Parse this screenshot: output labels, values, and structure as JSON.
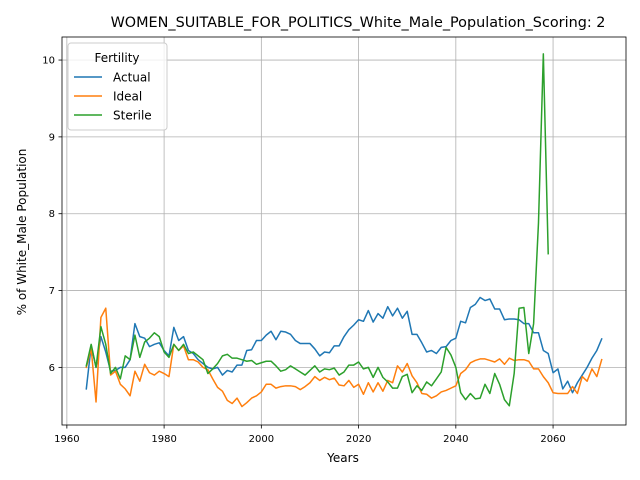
{
  "chart_data": {
    "type": "line",
    "title": "WOMEN_SUITABLE_FOR_POLITICS_White_Male_Population_Scoring: 2",
    "xlabel": "Years",
    "ylabel": "% of White_Male Population",
    "xlim": [
      1959,
      2075
    ],
    "ylim": [
      5.25,
      10.3
    ],
    "x_ticks": [
      1960,
      1980,
      2000,
      2020,
      2040,
      2060
    ],
    "y_ticks": [
      6,
      7,
      8,
      9,
      10
    ],
    "grid": true,
    "legend": {
      "title": "Fertility",
      "placement": "top-left"
    },
    "series": [
      {
        "name": "Actual",
        "color": "#1f77b4",
        "points": [
          [
            1964,
            5.72
          ],
          [
            1965,
            6.28
          ],
          [
            1966,
            6.0
          ],
          [
            1967,
            6.4
          ],
          [
            1968,
            6.2
          ],
          [
            1969,
            5.95
          ],
          [
            1970,
            5.96
          ],
          [
            1971,
            6.0
          ],
          [
            1972,
            6.0
          ],
          [
            1973,
            6.1
          ],
          [
            1974,
            6.57
          ],
          [
            1975,
            6.4
          ],
          [
            1976,
            6.38
          ],
          [
            1977,
            6.27
          ],
          [
            1978,
            6.3
          ],
          [
            1979,
            6.32
          ],
          [
            1980,
            6.22
          ],
          [
            1981,
            6.15
          ],
          [
            1982,
            6.52
          ],
          [
            1983,
            6.35
          ],
          [
            1984,
            6.4
          ],
          [
            1985,
            6.22
          ],
          [
            1986,
            6.18
          ],
          [
            1987,
            6.1
          ],
          [
            1988,
            6.05
          ],
          [
            1989,
            6.0
          ],
          [
            1990,
            5.98
          ],
          [
            1991,
            6.0
          ],
          [
            1992,
            5.9
          ],
          [
            1993,
            5.96
          ],
          [
            1994,
            5.94
          ],
          [
            1995,
            6.03
          ],
          [
            1996,
            6.03
          ],
          [
            1997,
            6.22
          ],
          [
            1998,
            6.23
          ],
          [
            1999,
            6.35
          ],
          [
            2000,
            6.35
          ],
          [
            2001,
            6.42
          ],
          [
            2002,
            6.47
          ],
          [
            2003,
            6.36
          ],
          [
            2004,
            6.47
          ],
          [
            2005,
            6.46
          ],
          [
            2006,
            6.43
          ],
          [
            2007,
            6.35
          ],
          [
            2008,
            6.31
          ],
          [
            2009,
            6.31
          ],
          [
            2010,
            6.31
          ],
          [
            2011,
            6.24
          ],
          [
            2012,
            6.15
          ],
          [
            2013,
            6.2
          ],
          [
            2014,
            6.19
          ],
          [
            2015,
            6.28
          ],
          [
            2016,
            6.28
          ],
          [
            2017,
            6.4
          ],
          [
            2018,
            6.49
          ],
          [
            2019,
            6.55
          ],
          [
            2020,
            6.62
          ],
          [
            2021,
            6.6
          ],
          [
            2022,
            6.74
          ],
          [
            2023,
            6.59
          ],
          [
            2024,
            6.7
          ],
          [
            2025,
            6.64
          ],
          [
            2026,
            6.79
          ],
          [
            2027,
            6.67
          ],
          [
            2028,
            6.77
          ],
          [
            2029,
            6.64
          ],
          [
            2030,
            6.73
          ],
          [
            2031,
            6.43
          ],
          [
            2032,
            6.43
          ],
          [
            2033,
            6.32
          ],
          [
            2034,
            6.2
          ],
          [
            2035,
            6.22
          ],
          [
            2036,
            6.18
          ],
          [
            2037,
            6.26
          ],
          [
            2038,
            6.27
          ],
          [
            2039,
            6.35
          ],
          [
            2040,
            6.38
          ],
          [
            2041,
            6.6
          ],
          [
            2042,
            6.58
          ],
          [
            2043,
            6.78
          ],
          [
            2044,
            6.82
          ],
          [
            2045,
            6.91
          ],
          [
            2046,
            6.87
          ],
          [
            2047,
            6.89
          ],
          [
            2048,
            6.76
          ],
          [
            2049,
            6.76
          ],
          [
            2050,
            6.62
          ],
          [
            2051,
            6.63
          ],
          [
            2052,
            6.63
          ],
          [
            2053,
            6.62
          ],
          [
            2054,
            6.57
          ],
          [
            2055,
            6.57
          ],
          [
            2056,
            6.45
          ],
          [
            2057,
            6.45
          ],
          [
            2058,
            6.22
          ],
          [
            2059,
            6.18
          ],
          [
            2060,
            5.93
          ],
          [
            2061,
            5.98
          ],
          [
            2062,
            5.72
          ],
          [
            2063,
            5.82
          ],
          [
            2064,
            5.67
          ],
          [
            2065,
            5.8
          ],
          [
            2066,
            5.9
          ],
          [
            2067,
            6.0
          ],
          [
            2068,
            6.12
          ],
          [
            2069,
            6.22
          ],
          [
            2070,
            6.37
          ]
        ]
      },
      {
        "name": "Ideal",
        "color": "#ff7f0e",
        "points": [
          [
            1964,
            6.0
          ],
          [
            1965,
            6.25
          ],
          [
            1966,
            5.55
          ],
          [
            1967,
            6.65
          ],
          [
            1968,
            6.77
          ],
          [
            1969,
            5.9
          ],
          [
            1970,
            5.95
          ],
          [
            1971,
            5.78
          ],
          [
            1972,
            5.72
          ],
          [
            1973,
            5.63
          ],
          [
            1974,
            5.95
          ],
          [
            1975,
            5.82
          ],
          [
            1976,
            6.04
          ],
          [
            1977,
            5.93
          ],
          [
            1978,
            5.9
          ],
          [
            1979,
            5.95
          ],
          [
            1980,
            5.92
          ],
          [
            1981,
            5.88
          ],
          [
            1982,
            6.3
          ],
          [
            1983,
            6.22
          ],
          [
            1984,
            6.28
          ],
          [
            1985,
            6.1
          ],
          [
            1986,
            6.1
          ],
          [
            1987,
            6.07
          ],
          [
            1988,
            6.0
          ],
          [
            1989,
            5.97
          ],
          [
            1990,
            5.85
          ],
          [
            1991,
            5.74
          ],
          [
            1992,
            5.69
          ],
          [
            1993,
            5.57
          ],
          [
            1994,
            5.53
          ],
          [
            1995,
            5.6
          ],
          [
            1996,
            5.49
          ],
          [
            1997,
            5.54
          ],
          [
            1998,
            5.6
          ],
          [
            1999,
            5.63
          ],
          [
            2000,
            5.68
          ],
          [
            2001,
            5.78
          ],
          [
            2002,
            5.78
          ],
          [
            2003,
            5.73
          ],
          [
            2004,
            5.75
          ],
          [
            2005,
            5.76
          ],
          [
            2006,
            5.76
          ],
          [
            2007,
            5.75
          ],
          [
            2008,
            5.71
          ],
          [
            2009,
            5.75
          ],
          [
            2010,
            5.8
          ],
          [
            2011,
            5.88
          ],
          [
            2012,
            5.83
          ],
          [
            2013,
            5.87
          ],
          [
            2014,
            5.84
          ],
          [
            2015,
            5.86
          ],
          [
            2016,
            5.77
          ],
          [
            2017,
            5.76
          ],
          [
            2018,
            5.83
          ],
          [
            2019,
            5.74
          ],
          [
            2020,
            5.78
          ],
          [
            2021,
            5.65
          ],
          [
            2022,
            5.8
          ],
          [
            2023,
            5.68
          ],
          [
            2024,
            5.8
          ],
          [
            2025,
            5.69
          ],
          [
            2026,
            5.83
          ],
          [
            2027,
            5.8
          ],
          [
            2028,
            6.02
          ],
          [
            2029,
            5.94
          ],
          [
            2030,
            6.05
          ],
          [
            2031,
            5.89
          ],
          [
            2032,
            5.8
          ],
          [
            2033,
            5.66
          ],
          [
            2034,
            5.65
          ],
          [
            2035,
            5.6
          ],
          [
            2036,
            5.63
          ],
          [
            2037,
            5.68
          ],
          [
            2038,
            5.7
          ],
          [
            2039,
            5.73
          ],
          [
            2040,
            5.76
          ],
          [
            2041,
            5.92
          ],
          [
            2042,
            5.97
          ],
          [
            2043,
            6.06
          ],
          [
            2044,
            6.09
          ],
          [
            2045,
            6.11
          ],
          [
            2046,
            6.11
          ],
          [
            2047,
            6.09
          ],
          [
            2048,
            6.07
          ],
          [
            2049,
            6.11
          ],
          [
            2050,
            6.04
          ],
          [
            2051,
            6.12
          ],
          [
            2052,
            6.09
          ],
          [
            2053,
            6.1
          ],
          [
            2054,
            6.1
          ],
          [
            2055,
            6.08
          ],
          [
            2056,
            5.98
          ],
          [
            2057,
            5.98
          ],
          [
            2058,
            5.88
          ],
          [
            2059,
            5.8
          ],
          [
            2060,
            5.67
          ],
          [
            2061,
            5.66
          ],
          [
            2062,
            5.66
          ],
          [
            2063,
            5.66
          ],
          [
            2064,
            5.75
          ],
          [
            2065,
            5.66
          ],
          [
            2066,
            5.88
          ],
          [
            2067,
            5.82
          ],
          [
            2068,
            5.98
          ],
          [
            2069,
            5.88
          ],
          [
            2070,
            6.1
          ]
        ]
      },
      {
        "name": "Sterile",
        "color": "#2ca02c",
        "points": [
          [
            1964,
            6.02
          ],
          [
            1965,
            6.3
          ],
          [
            1966,
            6.0
          ],
          [
            1967,
            6.53
          ],
          [
            1968,
            6.3
          ],
          [
            1969,
            5.92
          ],
          [
            1970,
            6.0
          ],
          [
            1971,
            5.85
          ],
          [
            1972,
            6.15
          ],
          [
            1973,
            6.1
          ],
          [
            1974,
            6.42
          ],
          [
            1975,
            6.13
          ],
          [
            1976,
            6.33
          ],
          [
            1977,
            6.38
          ],
          [
            1978,
            6.45
          ],
          [
            1979,
            6.4
          ],
          [
            1980,
            6.2
          ],
          [
            1981,
            6.13
          ],
          [
            1982,
            6.3
          ],
          [
            1983,
            6.22
          ],
          [
            1984,
            6.3
          ],
          [
            1985,
            6.18
          ],
          [
            1986,
            6.2
          ],
          [
            1987,
            6.15
          ],
          [
            1988,
            6.1
          ],
          [
            1989,
            5.92
          ],
          [
            1990,
            5.98
          ],
          [
            1991,
            6.05
          ],
          [
            1992,
            6.15
          ],
          [
            1993,
            6.17
          ],
          [
            1994,
            6.12
          ],
          [
            1995,
            6.12
          ],
          [
            1996,
            6.1
          ],
          [
            1997,
            6.08
          ],
          [
            1998,
            6.09
          ],
          [
            1999,
            6.04
          ],
          [
            2000,
            6.06
          ],
          [
            2001,
            6.08
          ],
          [
            2002,
            6.08
          ],
          [
            2003,
            6.02
          ],
          [
            2004,
            5.95
          ],
          [
            2005,
            5.97
          ],
          [
            2006,
            6.02
          ],
          [
            2007,
            5.98
          ],
          [
            2008,
            5.94
          ],
          [
            2009,
            5.9
          ],
          [
            2010,
            5.96
          ],
          [
            2011,
            6.02
          ],
          [
            2012,
            5.94
          ],
          [
            2013,
            5.98
          ],
          [
            2014,
            5.97
          ],
          [
            2015,
            5.99
          ],
          [
            2016,
            5.9
          ],
          [
            2017,
            5.94
          ],
          [
            2018,
            6.03
          ],
          [
            2019,
            6.03
          ],
          [
            2020,
            6.07
          ],
          [
            2021,
            5.98
          ],
          [
            2022,
            6.0
          ],
          [
            2023,
            5.87
          ],
          [
            2024,
            6.0
          ],
          [
            2025,
            5.87
          ],
          [
            2026,
            5.81
          ],
          [
            2027,
            5.73
          ],
          [
            2028,
            5.73
          ],
          [
            2029,
            5.88
          ],
          [
            2030,
            5.91
          ],
          [
            2031,
            5.67
          ],
          [
            2032,
            5.76
          ],
          [
            2033,
            5.7
          ],
          [
            2034,
            5.81
          ],
          [
            2035,
            5.76
          ],
          [
            2036,
            5.85
          ],
          [
            2037,
            5.94
          ],
          [
            2038,
            6.26
          ],
          [
            2039,
            6.16
          ],
          [
            2040,
            6.0
          ],
          [
            2041,
            5.67
          ],
          [
            2042,
            5.58
          ],
          [
            2043,
            5.66
          ],
          [
            2044,
            5.59
          ],
          [
            2045,
            5.6
          ],
          [
            2046,
            5.78
          ],
          [
            2047,
            5.66
          ],
          [
            2048,
            5.92
          ],
          [
            2049,
            5.78
          ],
          [
            2050,
            5.58
          ],
          [
            2051,
            5.5
          ],
          [
            2052,
            5.92
          ],
          [
            2053,
            6.77
          ],
          [
            2054,
            6.78
          ],
          [
            2055,
            6.18
          ],
          [
            2056,
            6.57
          ],
          [
            2057,
            7.88
          ],
          [
            2058,
            10.08
          ],
          [
            2059,
            7.48
          ]
        ]
      }
    ]
  }
}
